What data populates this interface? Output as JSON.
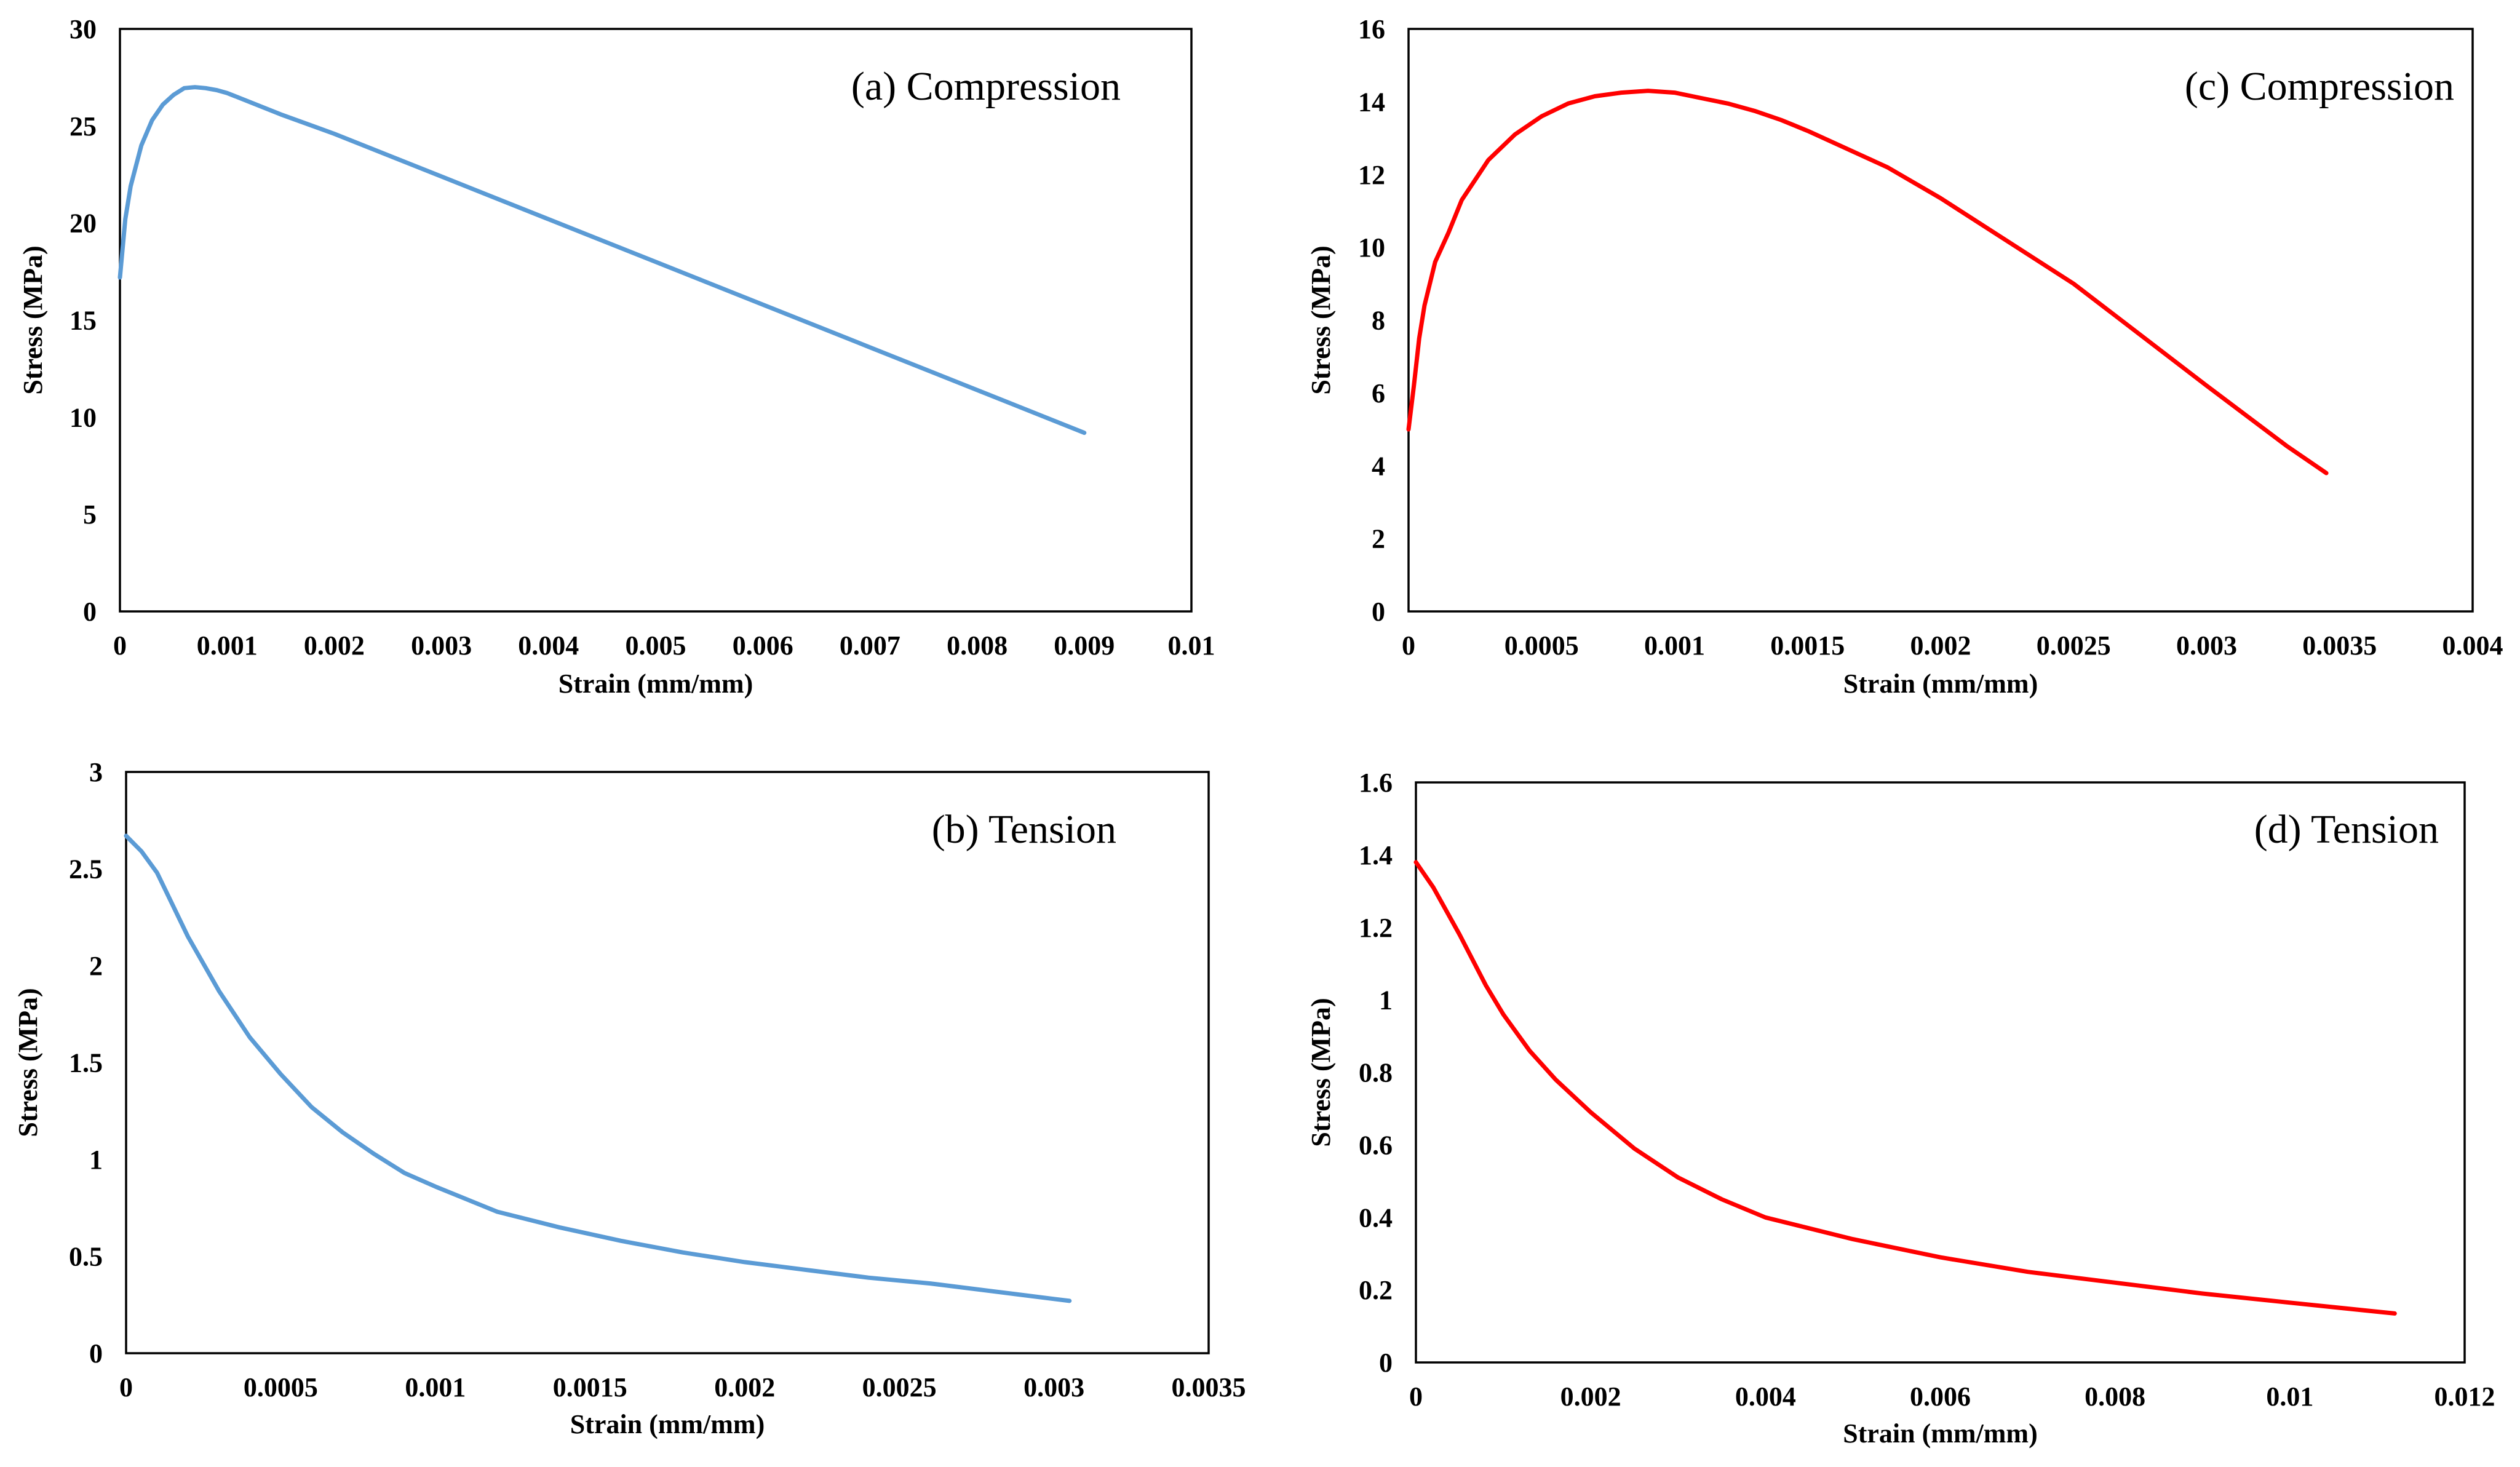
{
  "chart_data": [
    {
      "type": "line",
      "title": "(a) Compression",
      "xlabel": "Strain (mm/mm)",
      "ylabel": "Stress (MPa)",
      "xlim": [
        0,
        0.01
      ],
      "ylim": [
        0,
        30
      ],
      "xticks": [
        "0",
        "0.001",
        "0.002",
        "0.003",
        "0.004",
        "0.005",
        "0.006",
        "0.007",
        "0.008",
        "0.009",
        "0.01"
      ],
      "yticks": [
        "0",
        "5",
        "10",
        "15",
        "20",
        "25",
        "30"
      ],
      "grid": false,
      "color": "#5b9bd5",
      "series": [
        {
          "x": [
            0,
            5e-05,
            0.0001,
            0.0002,
            0.0003,
            0.0004,
            0.0005,
            0.0006,
            0.0007,
            0.0008,
            0.0009,
            0.001,
            0.0015,
            0.002,
            0.003,
            0.004,
            0.005,
            0.006,
            0.007,
            0.008,
            0.009
          ],
          "y": [
            17.2,
            20.2,
            21.9,
            24.0,
            25.3,
            26.1,
            26.6,
            26.95,
            27.0,
            26.95,
            26.85,
            26.7,
            25.6,
            24.6,
            22.4,
            20.2,
            18.0,
            15.8,
            13.6,
            11.4,
            9.2
          ]
        }
      ]
    },
    {
      "type": "line",
      "title": "(b) Tension",
      "xlabel": "Strain (mm/mm)",
      "ylabel": "Stress (MPa)",
      "xlim": [
        0,
        0.0035
      ],
      "ylim": [
        0,
        3
      ],
      "xticks": [
        "0",
        "0.0005",
        "0.001",
        "0.0015",
        "0.002",
        "0.0025",
        "0.003",
        "0.0035"
      ],
      "yticks": [
        "0",
        "0.5",
        "1",
        "1.5",
        "2",
        "2.5",
        "3"
      ],
      "grid": false,
      "color": "#5b9bd5",
      "series": [
        {
          "x": [
            0,
            5e-05,
            0.0001,
            0.0002,
            0.0003,
            0.0004,
            0.0005,
            0.0006,
            0.0007,
            0.0008,
            0.0009,
            0.001,
            0.0012,
            0.0014,
            0.0016,
            0.0018,
            0.002,
            0.0022,
            0.0024,
            0.0026,
            0.0028,
            0.003,
            0.00305
          ],
          "y": [
            2.67,
            2.59,
            2.48,
            2.15,
            1.87,
            1.63,
            1.44,
            1.27,
            1.14,
            1.03,
            0.93,
            0.86,
            0.73,
            0.65,
            0.58,
            0.52,
            0.47,
            0.43,
            0.39,
            0.36,
            0.32,
            0.28,
            0.27
          ]
        }
      ]
    },
    {
      "type": "line",
      "title": "(c) Compression",
      "xlabel": "Strain (mm/mm)",
      "ylabel": "Stress (MPa)",
      "xlim": [
        0,
        0.004
      ],
      "ylim": [
        0,
        16
      ],
      "xticks": [
        "0",
        "0.0005",
        "0.001",
        "0.0015",
        "0.002",
        "0.0025",
        "0.003",
        "0.0035",
        "0.004"
      ],
      "yticks": [
        "0",
        "2",
        "4",
        "6",
        "8",
        "10",
        "12",
        "14",
        "16"
      ],
      "grid": false,
      "color": "#ff0000",
      "series": [
        {
          "x": [
            0,
            2e-05,
            4e-05,
            6e-05,
            0.0001,
            0.00015,
            0.0002,
            0.0003,
            0.0004,
            0.0005,
            0.0006,
            0.0007,
            0.0008,
            0.0009,
            0.001,
            0.0011,
            0.0012,
            0.0013,
            0.0014,
            0.0015,
            0.0018,
            0.002,
            0.0025,
            0.003,
            0.0033,
            0.00345
          ],
          "y": [
            5.0,
            6.2,
            7.5,
            8.4,
            9.6,
            10.4,
            11.3,
            12.4,
            13.1,
            13.6,
            13.95,
            14.15,
            14.25,
            14.3,
            14.25,
            14.1,
            13.95,
            13.75,
            13.5,
            13.2,
            12.2,
            11.35,
            9.0,
            6.2,
            4.55,
            3.8
          ]
        }
      ]
    },
    {
      "type": "line",
      "title": "(d) Tension",
      "xlabel": "Strain (mm/mm)",
      "ylabel": "Stress (MPa)",
      "xlim": [
        0,
        0.012
      ],
      "ylim": [
        0,
        1.6
      ],
      "xticks": [
        "0",
        "0.002",
        "0.004",
        "0.006",
        "0.008",
        "0.01",
        "0.012"
      ],
      "yticks": [
        "0",
        "0.2",
        "0.4",
        "0.6",
        "0.8",
        "1",
        "1.2",
        "1.4",
        "1.6"
      ],
      "grid": false,
      "color": "#ff0000",
      "series": [
        {
          "x": [
            0,
            0.0002,
            0.0005,
            0.0008,
            0.001,
            0.0013,
            0.0016,
            0.002,
            0.0025,
            0.003,
            0.0035,
            0.004,
            0.005,
            0.006,
            0.007,
            0.008,
            0.009,
            0.01,
            0.011,
            0.0112
          ],
          "y": [
            1.38,
            1.31,
            1.18,
            1.04,
            0.96,
            0.86,
            0.78,
            0.69,
            0.59,
            0.51,
            0.45,
            0.4,
            0.34,
            0.29,
            0.25,
            0.22,
            0.19,
            0.165,
            0.14,
            0.135
          ]
        }
      ]
    }
  ]
}
